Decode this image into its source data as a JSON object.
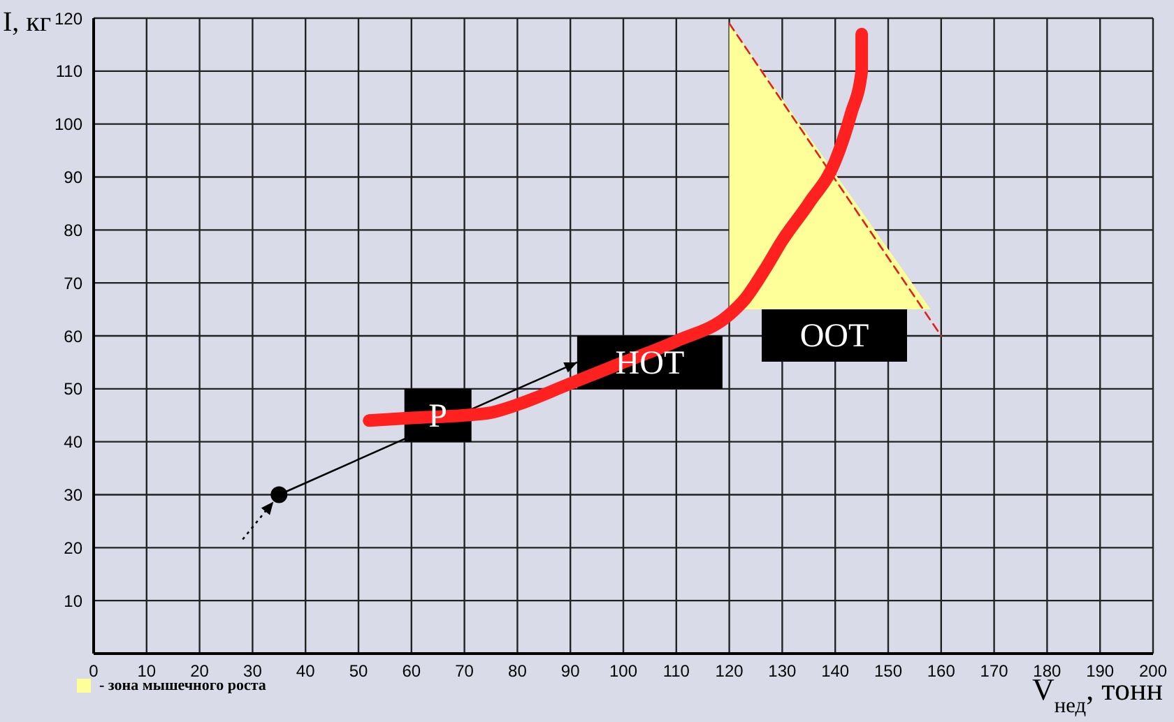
{
  "chart_data": {
    "type": "line",
    "xlabel": "V$_{нед}$, тонн",
    "ylabel": "I, кг",
    "xlim": [
      0,
      200
    ],
    "xticks": [
      0,
      10,
      20,
      30,
      40,
      50,
      60,
      70,
      80,
      90,
      100,
      110,
      120,
      130,
      140,
      150,
      160,
      170,
      180,
      190,
      200
    ],
    "ylim": [
      0,
      120
    ],
    "yticks": [
      {
        "value": 0,
        "label": null
      },
      10,
      20,
      30,
      40,
      50,
      60,
      70,
      80,
      90,
      100,
      110,
      120
    ],
    "grid": true,
    "legend": "bottom left",
    "series": [
      {
        "name": "- зона мышечного роста",
        "type": "area",
        "color": "#ffff99",
        "x": [
          120,
          120,
          158
        ],
        "values": [
          65,
          119,
          65
        ]
      },
      {
        "type": "line",
        "color": "#e02020",
        "line_style": "dashed",
        "x": [
          120,
          160
        ],
        "values": [
          119,
          60
        ]
      },
      {
        "type": "scatter",
        "color": "#000000",
        "x": [
          35
        ],
        "values": [
          30
        ]
      },
      {
        "color": "#ff2020",
        "line_style": "solid",
        "x": [
          52,
          60,
          70,
          75,
          80,
          90,
          100,
          110,
          120,
          123,
          127,
          130,
          135,
          140,
          143,
          145,
          145
        ],
        "values": [
          44,
          44.5,
          45,
          45.5,
          47,
          51,
          55,
          59,
          64,
          67,
          73,
          78,
          85,
          93,
          102,
          110,
          117
        ]
      }
    ],
    "annotations": [
      {
        "text": "Р",
        "x": 65,
        "y": 45
      },
      {
        "text": "НОТ",
        "x": 105,
        "y": 55
      },
      "ООТ"
    ]
  }
}
